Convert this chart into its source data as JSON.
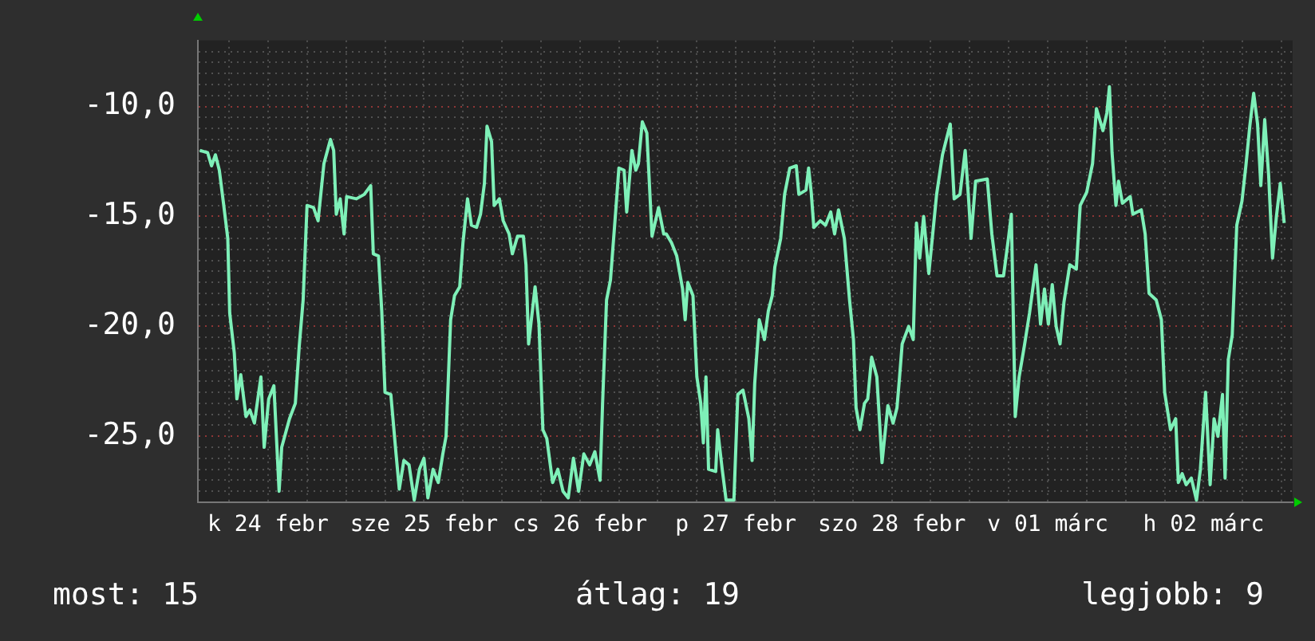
{
  "chart_data": {
    "type": "line",
    "x": [
      "--02-24T01:30",
      "--02-24T02:42",
      "--02-24T03:18",
      "--02-24T03:54",
      "--02-24T04:30",
      "--02-24T05:06",
      "--02-24T05:48",
      "--02-24T06:06",
      "--02-24T06:48",
      "--02-24T07:12",
      "--02-24T07:48",
      "--02-24T08:36",
      "--02-24T09:12",
      "--02-24T09:54",
      "--02-24T10:54",
      "--02-24T11:24",
      "--02-24T12:06",
      "--02-24T12:54",
      "--02-24T13:42",
      "--02-24T14:06",
      "--02-24T15:18",
      "--02-24T16:12",
      "--02-24T16:48",
      "--02-24T17:24",
      "--02-24T18:00",
      "--02-24T19:00",
      "--02-24T19:42",
      "--02-24T20:36",
      "--02-24T21:36",
      "--02-24T22:06",
      "--02-24T22:30",
      "--02-24T23:06",
      "--02-24T23:42",
      "--02-25T00:06",
      "--02-25T01:36",
      "--02-25T02:48",
      "--02-25T03:48",
      "--02-25T04:12",
      "--02-25T05:00",
      "--02-25T05:30",
      "--02-25T06:00",
      "--02-25T06:54",
      "--02-25T07:42",
      "--02-25T08:12",
      "--02-25T08:54",
      "--02-25T09:42",
      "--02-25T10:30",
      "--02-25T11:18",
      "--02-25T12:00",
      "--02-25T12:36",
      "--02-25T13:24",
      "--02-25T14:12",
      "--02-25T14:54",
      "--02-25T15:24",
      "--02-25T16:06",
      "--02-25T16:42",
      "--02-25T17:30",
      "--02-25T18:00",
      "--02-25T18:42",
      "--02-25T19:18",
      "--02-25T20:06",
      "--02-25T20:42",
      "--02-25T21:18",
      "--02-25T21:42",
      "--02-25T22:24",
      "--02-25T22:48",
      "--02-25T23:36",
      "--02-26T00:12",
      "--02-26T01:06",
      "--02-26T01:36",
      "--02-26T02:24",
      "--02-26T03:18",
      "--02-26T03:42",
      "--02-26T04:06",
      "--02-26T05:06",
      "--02-26T05:42",
      "--02-26T06:18",
      "--02-26T06:54",
      "--02-26T07:48",
      "--02-26T08:36",
      "--02-26T09:24",
      "--02-26T10:12",
      "--02-26T11:00",
      "--02-26T11:48",
      "--02-26T12:36",
      "--02-26T13:30",
      "--02-26T14:18",
      "--02-26T15:06",
      "--02-26T15:30",
      "--02-26T16:06",
      "--02-26T16:42",
      "--02-26T17:30",
      "--02-26T18:00",
      "--02-26T18:48",
      "--02-26T19:12",
      "--02-26T20:00",
      "--02-26T20:36",
      "--02-26T21:00",
      "--02-26T21:36",
      "--02-26T22:18",
      "--02-26T23:06",
      "--02-27T00:06",
      "--02-27T00:54",
      "--02-27T01:18",
      "--02-27T02:06",
      "--02-27T02:54",
      "--02-27T03:48",
      "--02-27T04:12",
      "--02-27T04:36",
      "--02-27T05:24",
      "--02-27T06:00",
      "--02-27T06:36",
      "--02-27T07:00",
      "--02-27T07:24",
      "--02-27T07:48",
      "--02-27T08:54",
      "--02-27T09:12",
      "--02-27T09:54",
      "--02-27T10:30",
      "--02-27T11:42",
      "--02-27T12:18",
      "--02-27T13:06",
      "--02-27T14:00",
      "--02-27T14:30",
      "--02-27T14:54",
      "--02-27T15:36",
      "--02-27T16:24",
      "--02-27T17:00",
      "--02-27T17:36",
      "--02-27T18:00",
      "--02-27T18:54",
      "--02-27T19:30",
      "--02-27T20:18",
      "--02-27T21:18",
      "--02-27T21:42",
      "--02-27T22:48",
      "--02-27T23:12",
      "--02-27T23:36",
      "--02-28T00:00",
      "--02-28T01:00",
      "--02-28T01:48",
      "--02-28T02:36",
      "--02-28T03:12",
      "--02-28T03:48",
      "--02-28T04:42",
      "--02-28T05:30",
      "--02-28T06:06",
      "--02-28T06:30",
      "--02-28T07:06",
      "--02-28T07:48",
      "--02-28T08:18",
      "--02-28T08:54",
      "--02-28T09:42",
      "--02-28T10:30",
      "--02-28T11:24",
      "--02-28T12:12",
      "--02-28T12:48",
      "--02-28T13:12",
      "--02-28T13:36",
      "--02-28T14:36",
      "--02-28T15:18",
      "--02-28T15:48",
      "--02-28T16:18",
      "--02-28T16:54",
      "--02-28T17:42",
      "--02-28T18:24",
      "--02-28T18:54",
      "--02-28T19:48",
      "--02-28T21:00",
      "--02-28T21:36",
      "--02-28T22:30",
      "--02-28T23:18",
      "--02-28T23:48",
      "--03-01T00:12",
      "--03-01T00:54",
      "--03-01T02:42",
      "--03-01T03:24",
      "--03-01T04:12",
      "--03-01T05:12",
      "--03-01T06:00",
      "--03-01T06:24",
      "--03-01T07:00",
      "--03-01T07:36",
      "--03-01T08:24",
      "--03-01T09:12",
      "--03-01T10:12",
      "--03-01T10:54",
      "--03-01T11:30",
      "--03-01T12:06",
      "--03-01T12:42",
      "--03-01T13:18",
      "--03-01T13:54",
      "--03-01T14:30",
      "--03-01T15:24",
      "--03-01T16:24",
      "--03-01T17:00",
      "--03-01T18:00",
      "--03-01T18:54",
      "--03-01T19:30",
      "--03-01T20:30",
      "--03-01T21:06",
      "--03-01T21:30",
      "--03-01T21:54",
      "--03-01T22:30",
      "--03-01T22:54",
      "--03-01T23:30",
      "--03-02T00:42",
      "--03-02T01:06",
      "--03-02T02:24",
      "--03-02T03:00",
      "--03-02T03:36",
      "--03-02T04:42",
      "--03-02T05:30",
      "--03-02T06:00",
      "--03-02T06:54",
      "--03-02T07:42",
      "--03-02T08:06",
      "--03-02T08:42",
      "--03-02T09:18",
      "--03-02T10:06",
      "--03-02T10:54",
      "--03-02T11:30",
      "--03-02T12:18",
      "--03-02T13:00",
      "--03-02T13:36",
      "--03-02T14:12",
      "--03-02T14:54",
      "--03-02T15:18",
      "--03-02T15:48",
      "--03-02T16:24",
      "--03-02T17:06",
      "--03-02T17:54",
      "--03-02T18:30",
      "--03-02T19:06",
      "--03-02T19:42",
      "--03-02T20:18",
      "--03-02T20:48",
      "--03-02T21:24",
      "--03-02T22:00",
      "--03-02T22:36",
      "--03-02T23:12",
      "--03-02T23:48",
      "--03-03T00:24"
    ],
    "series": [
      {
        "color": "#7ef0b8",
        "values": [
          -12.0,
          -12.1,
          -12.7,
          -12.2,
          -12.9,
          -14.3,
          -16.0,
          -19.4,
          -21.2,
          -23.3,
          -22.2,
          -24.1,
          -23.8,
          -24.4,
          -22.3,
          -25.5,
          -23.3,
          -22.7,
          -27.5,
          -25.5,
          -24.2,
          -23.5,
          -20.9,
          -18.8,
          -14.5,
          -14.6,
          -15.2,
          -12.6,
          -11.5,
          -12.0,
          -14.9,
          -14.2,
          -15.8,
          -14.1,
          -14.2,
          -14.0,
          -13.6,
          -16.7,
          -16.8,
          -19.3,
          -23.0,
          -23.1,
          -25.8,
          -27.4,
          -26.1,
          -26.3,
          -27.9,
          -26.5,
          -26.0,
          -27.8,
          -26.5,
          -27.1,
          -25.8,
          -25.0,
          -19.7,
          -18.6,
          -18.2,
          -16.2,
          -14.2,
          -15.4,
          -15.5,
          -14.9,
          -13.5,
          -10.9,
          -11.6,
          -14.5,
          -14.2,
          -15.2,
          -15.8,
          -16.7,
          -15.9,
          -15.9,
          -17.2,
          -20.8,
          -18.2,
          -19.9,
          -24.7,
          -25.1,
          -27.1,
          -26.5,
          -27.5,
          -27.8,
          -26.0,
          -27.5,
          -25.8,
          -26.3,
          -25.7,
          -27.0,
          -23.4,
          -18.8,
          -17.9,
          -14.8,
          -12.8,
          -12.9,
          -14.8,
          -12.0,
          -12.9,
          -12.6,
          -10.7,
          -11.2,
          -15.9,
          -14.6,
          -15.8,
          -15.8,
          -16.2,
          -16.8,
          -18.3,
          -19.7,
          -18.0,
          -18.6,
          -22.3,
          -23.5,
          -25.3,
          -22.3,
          -26.5,
          -26.6,
          -24.7,
          -26.5,
          -27.9,
          -27.9,
          -23.1,
          -22.9,
          -24.2,
          -26.1,
          -22.6,
          -19.7,
          -20.6,
          -19.3,
          -18.6,
          -17.3,
          -16.0,
          -14.0,
          -12.8,
          -12.7,
          -14.0,
          -13.8,
          -12.8,
          -13.9,
          -15.5,
          -15.2,
          -15.4,
          -14.8,
          -15.8,
          -14.7,
          -16.0,
          -18.8,
          -20.6,
          -23.7,
          -24.7,
          -23.5,
          -23.3,
          -21.4,
          -22.3,
          -26.2,
          -23.6,
          -24.4,
          -23.7,
          -22.3,
          -20.8,
          -20.0,
          -20.6,
          -15.3,
          -16.9,
          -15.0,
          -17.6,
          -15.5,
          -14.0,
          -12.2,
          -10.8,
          -14.2,
          -14.0,
          -12.0,
          -14.1,
          -16.0,
          -13.4,
          -13.3,
          -15.8,
          -17.7,
          -17.7,
          -15.9,
          -14.9,
          -24.1,
          -22.3,
          -20.9,
          -19.4,
          -17.2,
          -19.9,
          -18.3,
          -19.9,
          -18.1,
          -20.0,
          -20.8,
          -18.9,
          -17.2,
          -17.4,
          -14.5,
          -13.9,
          -12.6,
          -10.1,
          -11.1,
          -10.3,
          -9.1,
          -12.1,
          -14.5,
          -13.4,
          -14.4,
          -14.1,
          -14.9,
          -14.7,
          -15.8,
          -18.5,
          -18.8,
          -19.7,
          -23.0,
          -24.7,
          -24.2,
          -27.1,
          -26.7,
          -27.2,
          -26.9,
          -27.9,
          -26.5,
          -23.0,
          -27.2,
          -24.2,
          -25.0,
          -23.1,
          -26.9,
          -21.5,
          -20.4,
          -15.4,
          -14.3,
          -12.7,
          -10.9,
          -9.4,
          -10.8,
          -13.6,
          -10.6,
          -13.1,
          -16.9,
          -15.0,
          -13.5,
          -15.3
        ]
      }
    ],
    "xlim": [
      "--02-24T01:12",
      "--03-03T01:42"
    ],
    "xticks": [
      {
        "value": "--02-24T06:00",
        "label": null
      },
      {
        "value": "--02-24T12:00",
        "label": "k 24 febr"
      },
      {
        "value": "--02-24T18:00",
        "label": null
      },
      {
        "value": "--02-25T00:00",
        "label": null
      },
      {
        "value": "--02-25T06:00",
        "label": null
      },
      {
        "value": "--02-25T12:00",
        "label": "sze 25 febr"
      },
      {
        "value": "--02-25T18:00",
        "label": null
      },
      {
        "value": "--02-26T00:00",
        "label": null
      },
      {
        "value": "--02-26T06:00",
        "label": null
      },
      {
        "value": "--02-26T12:00",
        "label": "cs 26 febr"
      },
      {
        "value": "--02-26T18:00",
        "label": null
      },
      {
        "value": "--02-27T00:00",
        "label": null
      },
      {
        "value": "--02-27T06:00",
        "label": null
      },
      {
        "value": "--02-27T12:00",
        "label": "p 27 febr"
      },
      {
        "value": "--02-27T18:00",
        "label": null
      },
      {
        "value": "--02-28T00:00",
        "label": null
      },
      {
        "value": "--02-28T06:00",
        "label": null
      },
      {
        "value": "--02-28T12:00",
        "label": "szo 28 febr"
      },
      {
        "value": "--02-28T18:00",
        "label": null
      },
      {
        "value": "--03-01T00:00",
        "label": null
      },
      {
        "value": "--03-01T06:00",
        "label": null
      },
      {
        "value": "--03-01T12:00",
        "label": "v 01 márc"
      },
      {
        "value": "--03-01T18:00",
        "label": null
      },
      {
        "value": "--03-02T00:00",
        "label": null
      },
      {
        "value": "--03-02T06:00",
        "label": null
      },
      {
        "value": "--03-02T12:00",
        "label": "h 02 márc"
      },
      {
        "value": "--03-02T18:00",
        "label": null
      },
      {
        "value": "--03-03T00:00",
        "label": null
      }
    ],
    "ylim": [
      -28,
      -7
    ],
    "yticks": [
      {
        "value": -27.5,
        "label": null
      },
      {
        "value": -27,
        "label": null
      },
      {
        "value": -26.5,
        "label": null
      },
      {
        "value": -26,
        "label": null
      },
      {
        "value": -25.5,
        "label": null
      },
      {
        "value": -25,
        "label": "-25,0"
      },
      {
        "value": -24.5,
        "label": null
      },
      {
        "value": -24,
        "label": null
      },
      {
        "value": -23.5,
        "label": null
      },
      {
        "value": -23,
        "label": null
      },
      {
        "value": -22.5,
        "label": null
      },
      {
        "value": -22,
        "label": null
      },
      {
        "value": -21.5,
        "label": null
      },
      {
        "value": -21,
        "label": null
      },
      {
        "value": -20.5,
        "label": null
      },
      {
        "value": -20,
        "label": "-20,0"
      },
      {
        "value": -19.5,
        "label": null
      },
      {
        "value": -19,
        "label": null
      },
      {
        "value": -18.5,
        "label": null
      },
      {
        "value": -18,
        "label": null
      },
      {
        "value": -17.5,
        "label": null
      },
      {
        "value": -17,
        "label": null
      },
      {
        "value": -16.5,
        "label": null
      },
      {
        "value": -16,
        "label": null
      },
      {
        "value": -15.5,
        "label": null
      },
      {
        "value": -15,
        "label": "-15,0"
      },
      {
        "value": -14.5,
        "label": null
      },
      {
        "value": -14,
        "label": null
      },
      {
        "value": -13.5,
        "label": null
      },
      {
        "value": -13,
        "label": null
      },
      {
        "value": -12.5,
        "label": null
      },
      {
        "value": -12,
        "label": null
      },
      {
        "value": -11.5,
        "label": null
      },
      {
        "value": -11,
        "label": null
      },
      {
        "value": -10.5,
        "label": null
      },
      {
        "value": -10,
        "label": "-10,0"
      },
      {
        "value": -9.5,
        "label": null
      },
      {
        "value": -9,
        "label": null
      },
      {
        "value": -8.5,
        "label": null
      },
      {
        "value": -8,
        "label": null
      },
      {
        "value": -7.5,
        "label": null
      }
    ],
    "grid": true,
    "legend": false,
    "marker": "none",
    "line_style": "solid",
    "annotations": [
      "most: 15",
      "átlag: 19",
      "legjobb: 9"
    ]
  }
}
